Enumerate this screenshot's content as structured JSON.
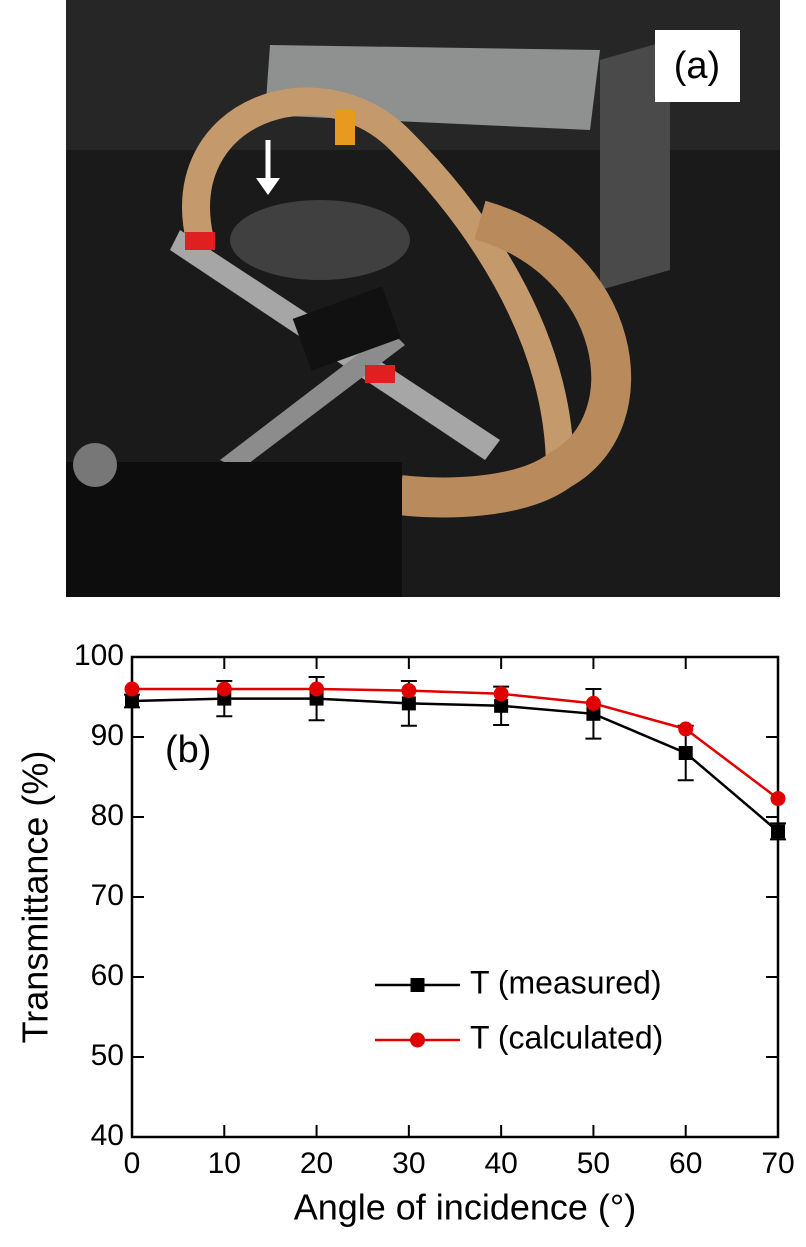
{
  "panel_a": {
    "label": "(a)"
  },
  "chart_data": {
    "type": "line",
    "annotation": "(b)",
    "xlabel": "Angle of incidence (°)",
    "ylabel": "Transmittance (%)",
    "x": [
      0,
      10,
      20,
      30,
      40,
      50,
      60,
      70
    ],
    "series": [
      {
        "name": "T (measured)",
        "color": "#000000",
        "marker": "square",
        "values": [
          94.5,
          94.8,
          94.8,
          94.2,
          93.9,
          92.9,
          88.0,
          78.2
        ],
        "errors": [
          0.8,
          2.2,
          2.7,
          2.8,
          2.4,
          3.1,
          3.4,
          1.0
        ]
      },
      {
        "name": "T (calculated)",
        "color": "#e00000",
        "marker": "circle",
        "values": [
          96.0,
          96.0,
          96.0,
          95.8,
          95.4,
          94.2,
          91.0,
          82.3
        ]
      }
    ],
    "xlim": [
      0,
      70
    ],
    "xticks": [
      0,
      10,
      20,
      30,
      40,
      50,
      60,
      70
    ],
    "ylim": [
      40,
      100
    ],
    "yticks": [
      40,
      50,
      60,
      70,
      80,
      90,
      100
    ],
    "grid": false,
    "legend": "lower right"
  }
}
